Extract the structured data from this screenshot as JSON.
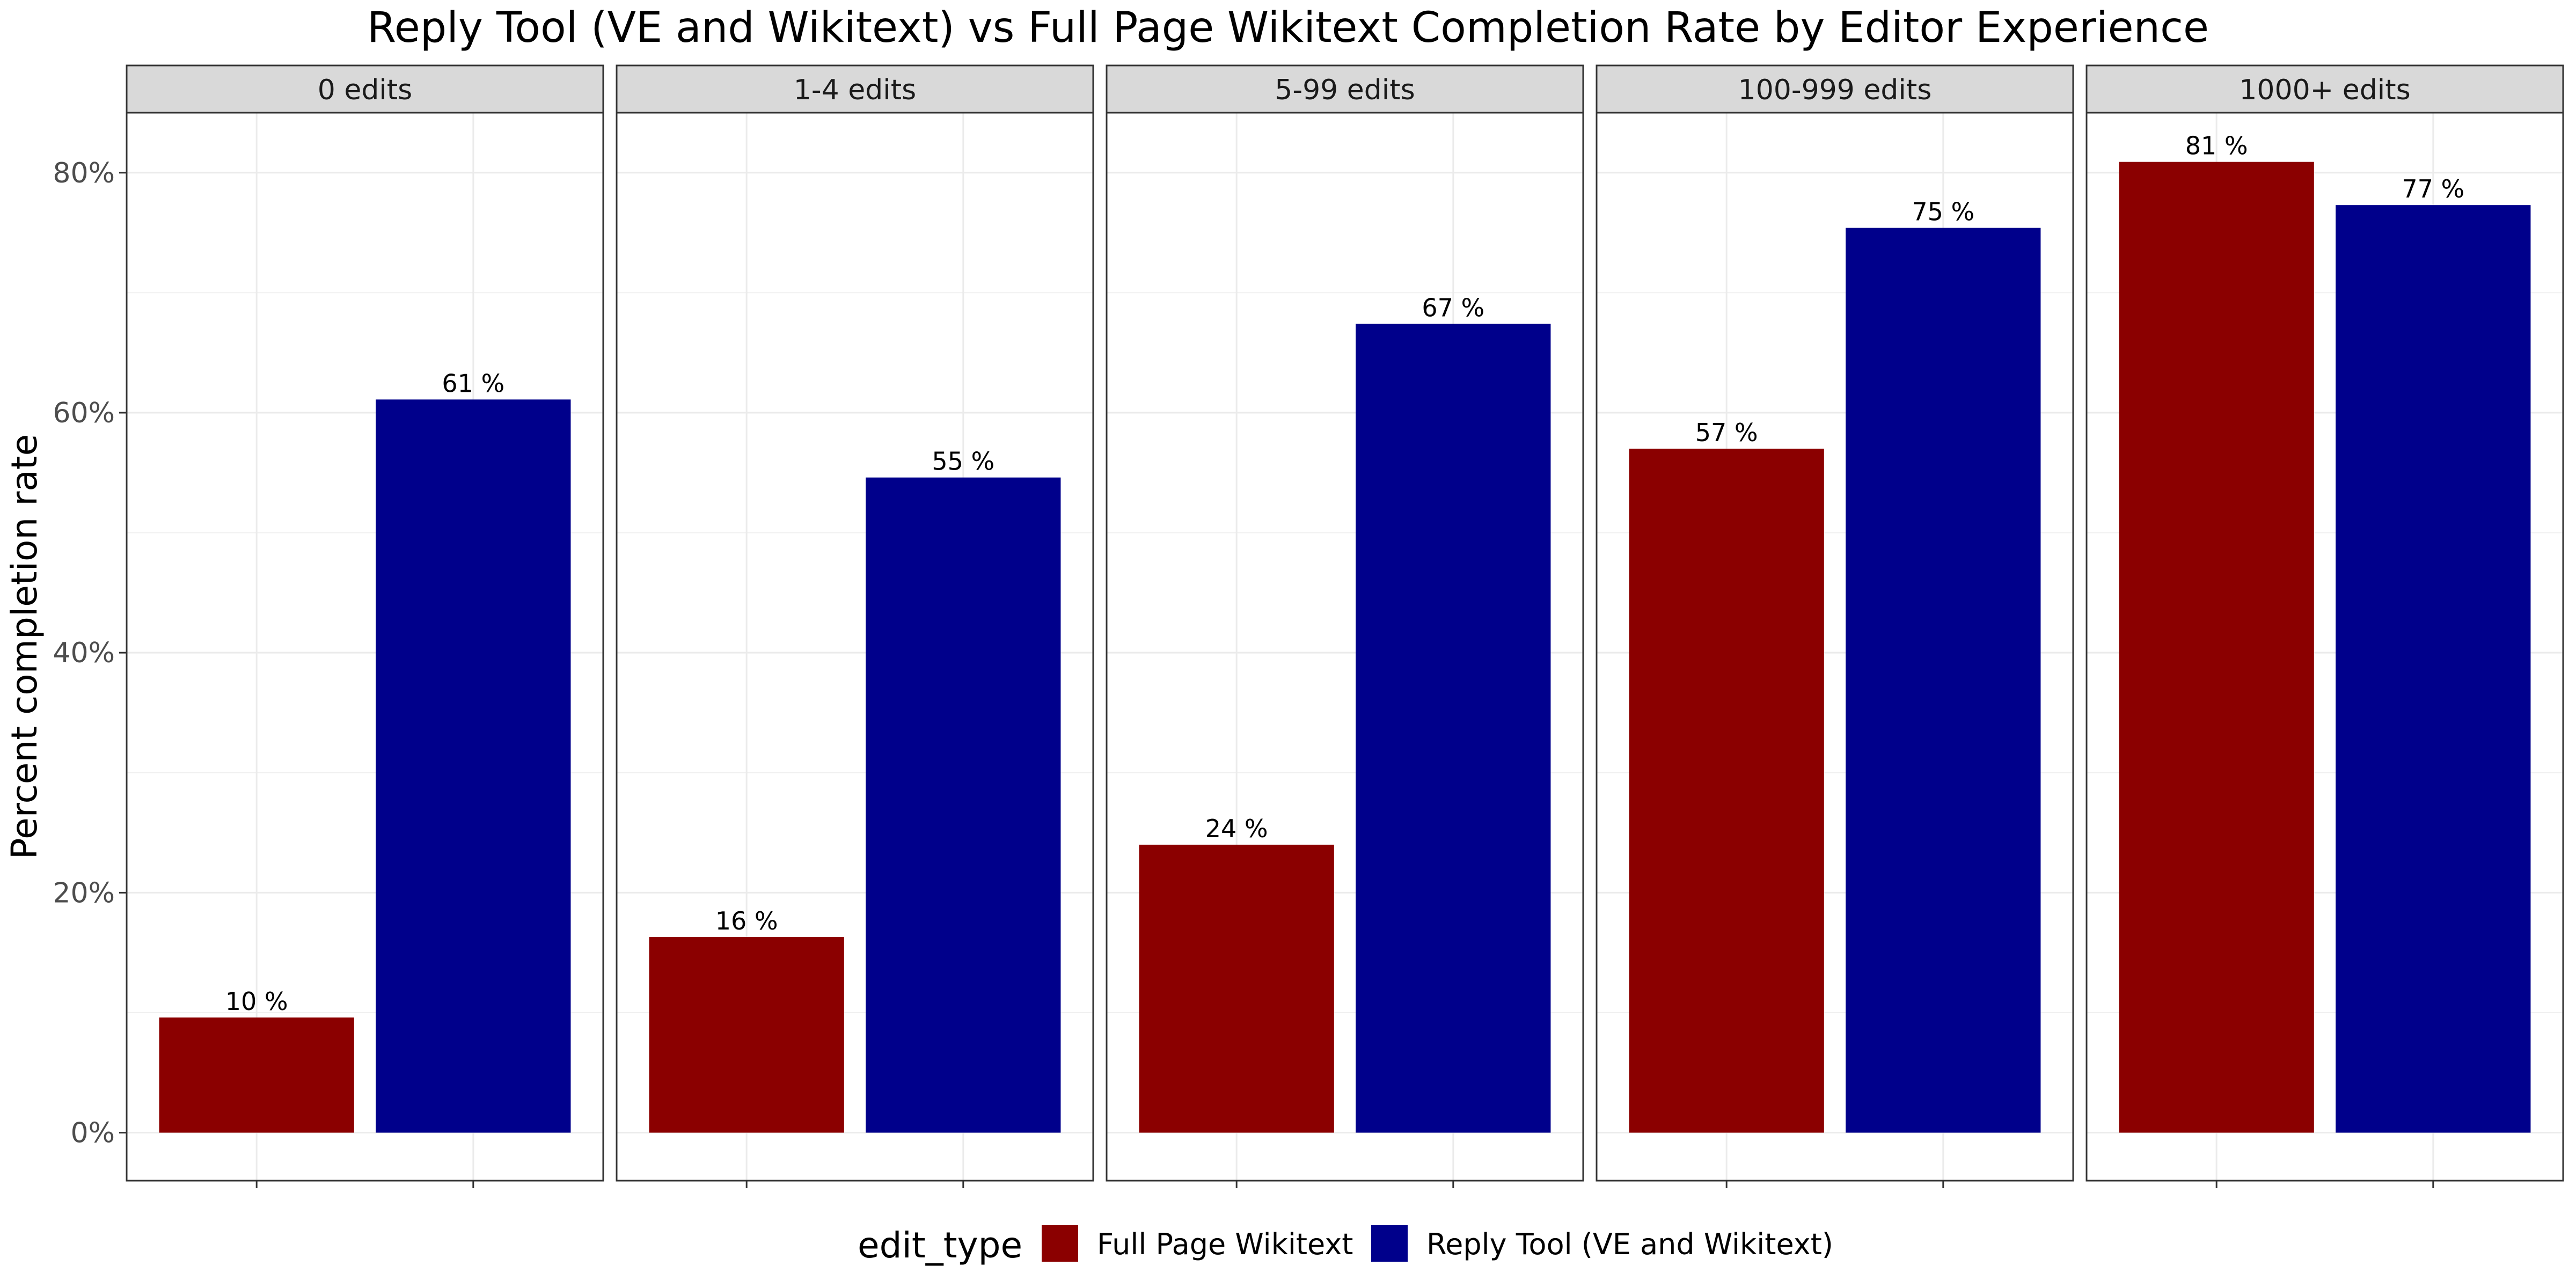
{
  "chart_data": {
    "type": "bar",
    "title": "Reply Tool (VE and Wikitext) vs Full Page Wikitext Completion Rate by Editor Experience",
    "xlabel": "",
    "ylabel": "Percent completion rate",
    "ylim": [
      -4,
      85
    ],
    "yticks": [
      0,
      20,
      40,
      60,
      80
    ],
    "ytick_labels": [
      "0%",
      "20%",
      "40%",
      "60%",
      "80%"
    ],
    "facets": [
      "0 edits",
      "1-4 edits",
      "5-99 edits",
      "100-999 edits",
      "1000+ edits"
    ],
    "series": [
      {
        "name": "Full Page Wikitext",
        "color": "#8B0000",
        "values": [
          9.6,
          16.3,
          24.0,
          57.0,
          80.9
        ],
        "labels": [
          "10 %",
          "16 %",
          "24 %",
          "57 %",
          "81 %"
        ]
      },
      {
        "name": "Reply Tool (VE and Wikitext)",
        "color": "#00008B",
        "values": [
          61.1,
          54.6,
          67.4,
          75.4,
          77.3
        ],
        "labels": [
          "61 %",
          "55 %",
          "67 %",
          "75 %",
          "77 %"
        ]
      }
    ],
    "grid": true,
    "legend": {
      "title": "edit_type",
      "position": "bottom"
    }
  }
}
